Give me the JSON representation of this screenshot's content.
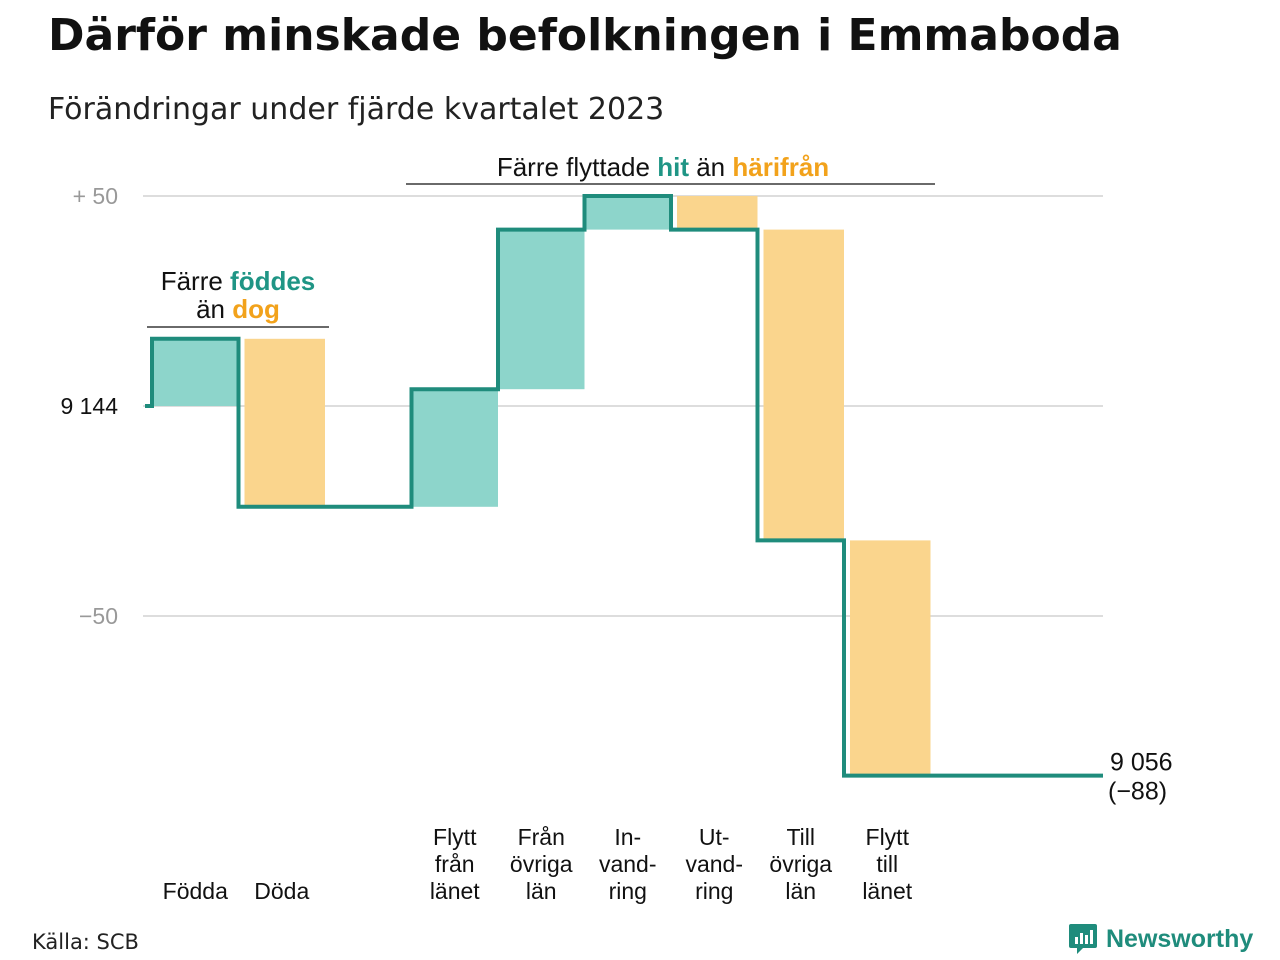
{
  "header": {
    "title": "Därför minskade befolkningen i Emmaboda",
    "subtitle": "Förändringar under fjärde kvartalet 2023"
  },
  "source": "Källa: SCB",
  "brand": {
    "name": "Newsworthy",
    "icon": "bar-chart-speech-bubble-icon"
  },
  "colors": {
    "positive_fill": "#8dd5cb",
    "negative_fill": "#fad58d",
    "step_line": "#1f8c7c",
    "teal_text": "#1f9585",
    "orange_text": "#f2a21b",
    "grid": "#dddddd",
    "muted_tick": "#999999"
  },
  "chart_data": {
    "type": "waterfall",
    "start_value": 9144,
    "start_label": "9 144",
    "end_value": 9056,
    "end_label": "9 056",
    "net_change_label": "(−88)",
    "y_relative_range": [
      -100,
      50
    ],
    "y_ticks": [
      {
        "value": 50,
        "label": "+  50",
        "muted": true
      },
      {
        "value": 0,
        "label": "9  144",
        "muted": false
      },
      {
        "value": -50,
        "label": "−50",
        "muted": true
      }
    ],
    "grid": true,
    "steps": [
      {
        "label": [
          "Födda"
        ],
        "value": 16,
        "kind": "in"
      },
      {
        "label": [
          "Döda"
        ],
        "value": -40,
        "kind": "out"
      },
      {
        "label": [],
        "value": 0,
        "kind": "gap"
      },
      {
        "label": [
          "Flytt",
          "från",
          "länet"
        ],
        "value": 28,
        "kind": "in"
      },
      {
        "label": [
          "Från",
          "övriga",
          "län"
        ],
        "value": 38,
        "kind": "in"
      },
      {
        "label": [
          "In-",
          "vand-",
          "ring"
        ],
        "value": 8,
        "kind": "in"
      },
      {
        "label": [
          "Ut-",
          "vand-",
          "ring"
        ],
        "value": -8,
        "kind": "out"
      },
      {
        "label": [
          "Till",
          "övriga",
          "län"
        ],
        "value": -74,
        "kind": "out"
      },
      {
        "label": [
          "Flytt",
          "till",
          "länet"
        ],
        "value": -56,
        "kind": "out"
      }
    ],
    "annotations": [
      {
        "id": "births",
        "parts": [
          [
            {
              "text": "Färre ",
              "style": "plain"
            },
            {
              "text": "föddes",
              "style": "teal"
            }
          ],
          [
            {
              "text": "än ",
              "style": "plain"
            },
            {
              "text": "dog",
              "style": "orange"
            }
          ]
        ]
      },
      {
        "id": "migration",
        "parts": [
          [
            {
              "text": "Färre flyttade ",
              "style": "plain"
            },
            {
              "text": "hit",
              "style": "teal"
            },
            {
              "text": " än ",
              "style": "plain"
            },
            {
              "text": "härifrån",
              "style": "orange"
            }
          ]
        ]
      }
    ]
  }
}
